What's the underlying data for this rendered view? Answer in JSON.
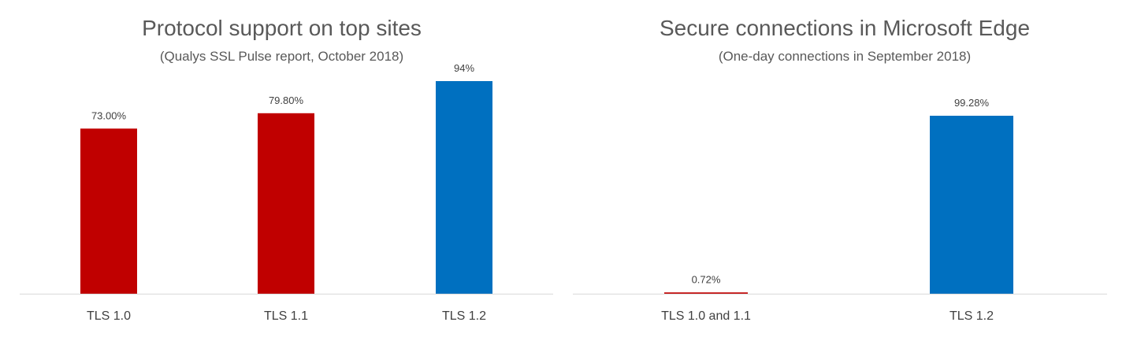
{
  "colors": {
    "red": "#C00000",
    "blue": "#0070C0",
    "axis": "#D9D9D9",
    "text": "#404040"
  },
  "chart_data": [
    {
      "type": "bar",
      "title": "Protocol support on top sites",
      "subtitle": "(Qualys SSL Pulse report, October 2018)",
      "categories": [
        "TLS 1.0",
        "TLS 1.1",
        "TLS 1.2"
      ],
      "values": [
        73.0,
        79.8,
        94
      ],
      "data_labels": [
        "73.00%",
        "79.80%",
        "94%"
      ],
      "bar_colors": [
        "#C00000",
        "#C00000",
        "#0070C0"
      ],
      "ylim": [
        0,
        100
      ],
      "grid": false
    },
    {
      "type": "bar",
      "title": "Secure connections in Microsoft Edge",
      "subtitle": "(One-day connections in September 2018)",
      "categories": [
        "TLS 1.0 and 1.1",
        "TLS 1.2"
      ],
      "values": [
        0.72,
        99.28
      ],
      "data_labels": [
        "0.72%",
        "99.28%"
      ],
      "bar_colors": [
        "#C00000",
        "#0070C0"
      ],
      "ylim": [
        0,
        100
      ],
      "grid": false
    }
  ]
}
